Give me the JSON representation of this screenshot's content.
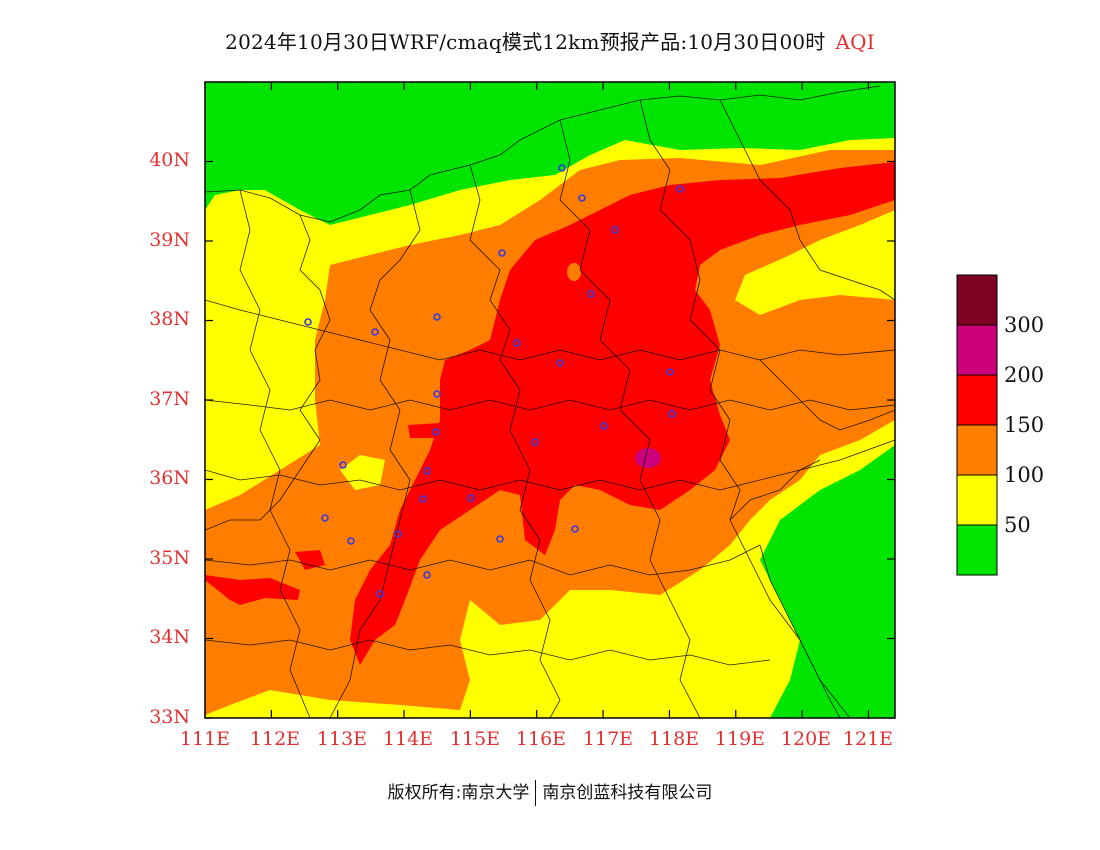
{
  "title": {
    "main": "2024年10月30日WRF/cmaq模式12km预报产品:10月30日00时",
    "variable": "AQI"
  },
  "colors": {
    "tick_color": "#e03030",
    "level_0_50": "#00e400",
    "level_50_100": "#ffff00",
    "level_100_150": "#ff7e00",
    "level_150_200": "#ff0000",
    "level_200_300": "#cc007a",
    "level_300_plus": "#7e0023",
    "station_marker": "#3a3adf"
  },
  "map": {
    "lon_range": [
      111,
      121.4
    ],
    "lat_range": [
      33,
      41
    ],
    "x_ticks": [
      "111E",
      "112E",
      "113E",
      "114E",
      "115E",
      "116E",
      "117E",
      "118E",
      "119E",
      "120E",
      "121E"
    ],
    "y_ticks": [
      "33N",
      "34N",
      "35N",
      "36N",
      "37N",
      "38N",
      "39N",
      "40N"
    ]
  },
  "legend": {
    "labels": [
      "300",
      "200",
      "150",
      "100",
      "50"
    ],
    "categories": [
      "0-50",
      "50-100",
      "100-150",
      "150-200",
      "200-300",
      ">300"
    ]
  },
  "footer": {
    "copyright": "版权所有:南京大学",
    "company": "南京创蓝科技有限公司"
  }
}
